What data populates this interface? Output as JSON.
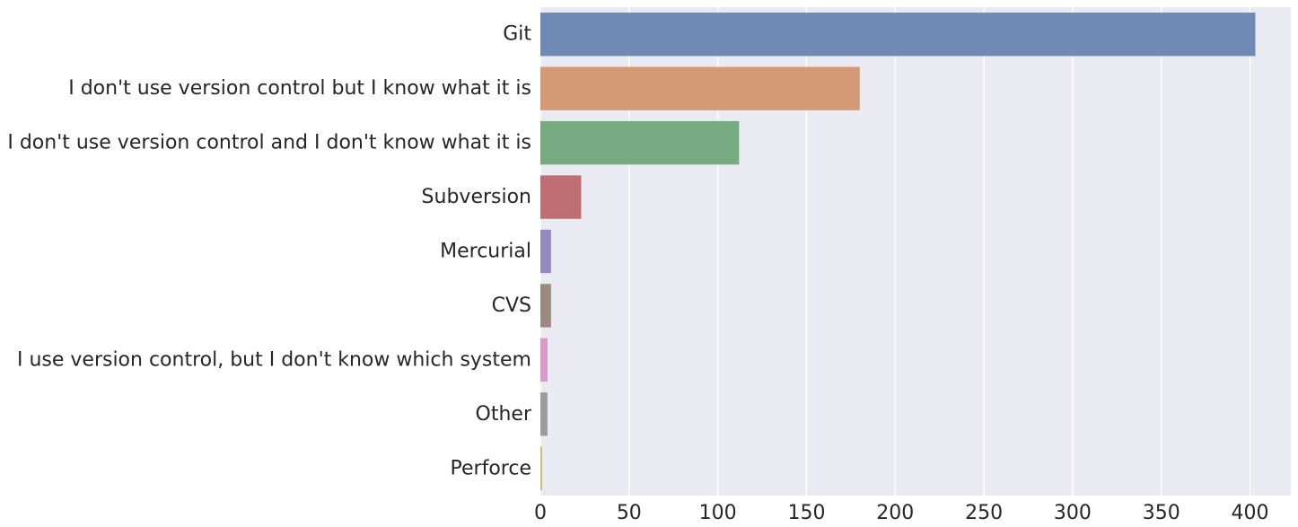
{
  "chart_data": {
    "type": "bar",
    "orientation": "horizontal",
    "title": "",
    "xlabel": "",
    "ylabel": "",
    "categories": [
      "Git",
      "I don't use version control but I know what it is",
      "I don't use version control and I don't know what it is",
      "Subversion",
      "Mercurial",
      "CVS",
      "I use version control, but I don't know which system",
      "Other",
      "Perforce"
    ],
    "values": [
      403,
      180,
      112,
      23,
      6,
      6,
      4,
      4,
      1
    ],
    "colors": [
      "#7189b5",
      "#d49a75",
      "#76ab82",
      "#bf6e74",
      "#9589be",
      "#9c8a7e",
      "#d79ac9",
      "#9c9c9c",
      "#c7c07a"
    ],
    "xlim": [
      0,
      423
    ],
    "xticks": [
      0,
      50,
      100,
      150,
      200,
      250,
      300,
      350,
      400
    ],
    "grid": true,
    "legend": "none",
    "background": "#eaeaf2"
  }
}
